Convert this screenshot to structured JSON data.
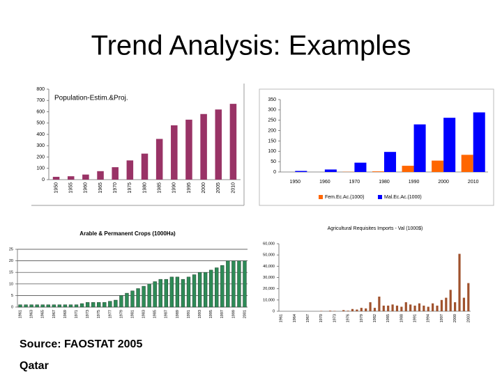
{
  "slide": {
    "title": "Trend Analysis: Examples",
    "source": "Source: FAOSTAT 2005",
    "country": "Qatar"
  },
  "chart_data": [
    {
      "type": "bar",
      "title": "Population-Estim.&Proj.",
      "color": "#993366",
      "categories": [
        "1950",
        "1955",
        "1960",
        "1965",
        "1970",
        "1975",
        "1980",
        "1985",
        "1990",
        "1995",
        "2000",
        "2005",
        "2010"
      ],
      "values": [
        25,
        30,
        45,
        75,
        110,
        170,
        230,
        360,
        480,
        530,
        580,
        620,
        670
      ],
      "ylim": [
        0,
        800
      ],
      "yticks": [
        0,
        100,
        200,
        300,
        400,
        500,
        600,
        700,
        800
      ],
      "grid": false
    },
    {
      "type": "bar",
      "categories": [
        "1950",
        "1960",
        "1970",
        "1980",
        "1990",
        "2000",
        "2010"
      ],
      "series": [
        {
          "name": "Fem.Ec.Ac.(1000)",
          "color": "#ff6600",
          "values": [
            0,
            0,
            1,
            3,
            30,
            55,
            83
          ]
        },
        {
          "name": "Mal.Ec.Ac.(1000)",
          "color": "#0000ff",
          "values": [
            5,
            12,
            45,
            97,
            230,
            262,
            288
          ]
        }
      ],
      "ylim": [
        0,
        350
      ],
      "yticks": [
        0,
        50,
        100,
        150,
        200,
        250,
        300,
        350
      ],
      "grid": false,
      "legend": "bottom"
    },
    {
      "type": "bar",
      "title": "Arable & Permanent Crops (1000Ha)",
      "color": "#2e8b57",
      "categories": [
        "1961",
        null,
        "1963",
        null,
        "1965",
        null,
        "1967",
        null,
        "1969",
        null,
        "1971",
        null,
        "1973",
        null,
        "1975",
        null,
        "1977",
        null,
        "1979",
        null,
        "1981",
        null,
        "1983",
        null,
        "1985",
        null,
        "1987",
        null,
        "1989",
        null,
        "1991",
        null,
        "1993",
        null,
        "1995",
        null,
        "1997",
        null,
        "1999",
        null,
        "2001"
      ],
      "values": [
        1,
        1,
        1,
        1,
        1,
        1,
        1,
        1,
        1,
        1,
        1,
        1.5,
        2,
        2,
        2,
        2,
        2.5,
        3,
        5,
        6,
        7,
        8,
        9,
        10,
        11,
        12,
        12,
        13,
        13,
        12,
        13,
        14,
        15,
        15,
        16,
        17,
        18,
        20,
        20,
        20,
        20
      ],
      "ylim": [
        0,
        25
      ],
      "yticks": [
        0,
        5,
        10,
        15,
        20,
        25
      ],
      "grid": true
    },
    {
      "type": "bar",
      "title": "Agricultural Requisites Imports - Val (1000$)",
      "color": "#a0522d",
      "categories": [
        "1961",
        null,
        null,
        "1964",
        null,
        null,
        "1967",
        null,
        null,
        "1970",
        null,
        null,
        "1973",
        null,
        null,
        "1976",
        null,
        null,
        "1979",
        null,
        null,
        "1982",
        null,
        null,
        "1985",
        null,
        null,
        "1988",
        null,
        null,
        "1991",
        null,
        null,
        "1994",
        null,
        null,
        "1997",
        null,
        null,
        "2000",
        null,
        null,
        "2003"
      ],
      "values": [
        0,
        0,
        0,
        0,
        0,
        0,
        0,
        0,
        0,
        300,
        0,
        500,
        300,
        0,
        1000,
        500,
        2000,
        1500,
        3000,
        2500,
        8000,
        3000,
        13000,
        5000,
        5000,
        6000,
        5000,
        4000,
        8000,
        6000,
        5000,
        7000,
        5000,
        4000,
        7000,
        5000,
        10000,
        12000,
        19000,
        8000,
        51000,
        12000,
        25000
      ],
      "ylim": [
        0,
        60000
      ],
      "yticks": [
        0,
        {
          "value": 10000,
          "label": "10,000"
        },
        {
          "value": 20000,
          "label": "20,000"
        },
        {
          "value": 30000,
          "label": "30,000"
        },
        {
          "value": 40000,
          "label": "40,000"
        },
        {
          "value": 50000,
          "label": "50,000"
        },
        {
          "value": 60000,
          "label": "60,000"
        }
      ],
      "grid": false
    }
  ]
}
